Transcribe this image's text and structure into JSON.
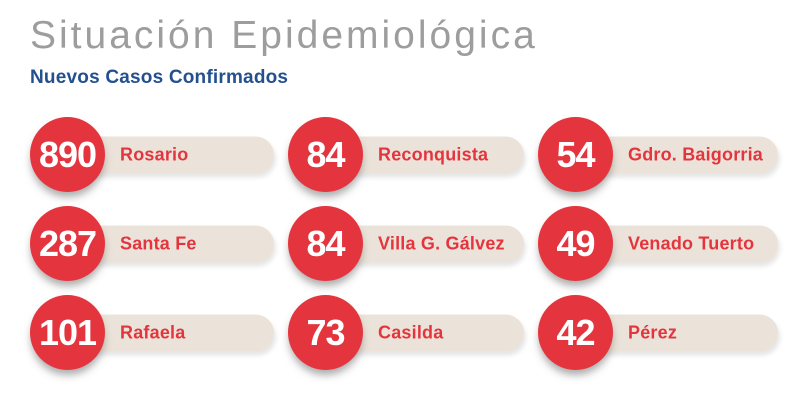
{
  "header": {
    "title": "Situación Epidemiológica",
    "subtitle": "Nuevos Casos Confirmados"
  },
  "badges": [
    {
      "value": "890",
      "label": "Rosario"
    },
    {
      "value": "84",
      "label": "Reconquista"
    },
    {
      "value": "54",
      "label": "Gdro. Baigorria"
    },
    {
      "value": "287",
      "label": "Santa Fe"
    },
    {
      "value": "84",
      "label": "Villa G. Gálvez"
    },
    {
      "value": "49",
      "label": "Venado Tuerto"
    },
    {
      "value": "101",
      "label": "Rafaela"
    },
    {
      "value": "73",
      "label": "Casilda"
    },
    {
      "value": "42",
      "label": "Pérez"
    }
  ],
  "colors": {
    "accent_red": "#e4353e",
    "pill_beige": "#ebe3d9",
    "subtitle_blue": "#24508f",
    "title_gray": "#9d9d9d"
  },
  "chart_data": {
    "type": "table",
    "title": "Situación Epidemiológica",
    "subtitle": "Nuevos Casos Confirmados",
    "categories": [
      "Rosario",
      "Reconquista",
      "Gdro. Baigorria",
      "Santa Fe",
      "Villa G. Gálvez",
      "Venado Tuerto",
      "Rafaela",
      "Casilda",
      "Pérez"
    ],
    "values": [
      890,
      84,
      54,
      287,
      84,
      49,
      101,
      73,
      42
    ],
    "layout": "3x3 badge grid, row-major order"
  }
}
